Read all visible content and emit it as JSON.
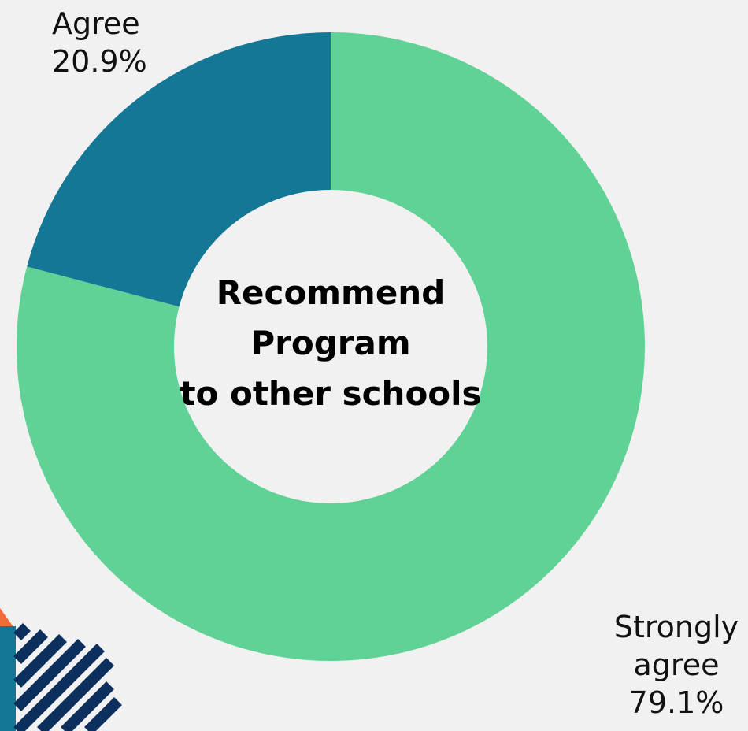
{
  "chart_data": {
    "type": "pie",
    "title_lines": [
      "Recommend",
      "Program",
      "to other schools"
    ],
    "slices": [
      {
        "label": "Strongly agree",
        "label_lines": [
          "Strongly",
          "agree"
        ],
        "value": 79.1,
        "value_label": "79.1%",
        "color": "#61d295"
      },
      {
        "label": "Agree",
        "label_lines": [
          "Agree"
        ],
        "value": 20.9,
        "value_label": "20.9%",
        "color": "#157796"
      }
    ]
  },
  "decoration": {
    "stripe_color": "#0d2f5e",
    "block_color": "#157796",
    "accent_color": "#f26b3a"
  }
}
